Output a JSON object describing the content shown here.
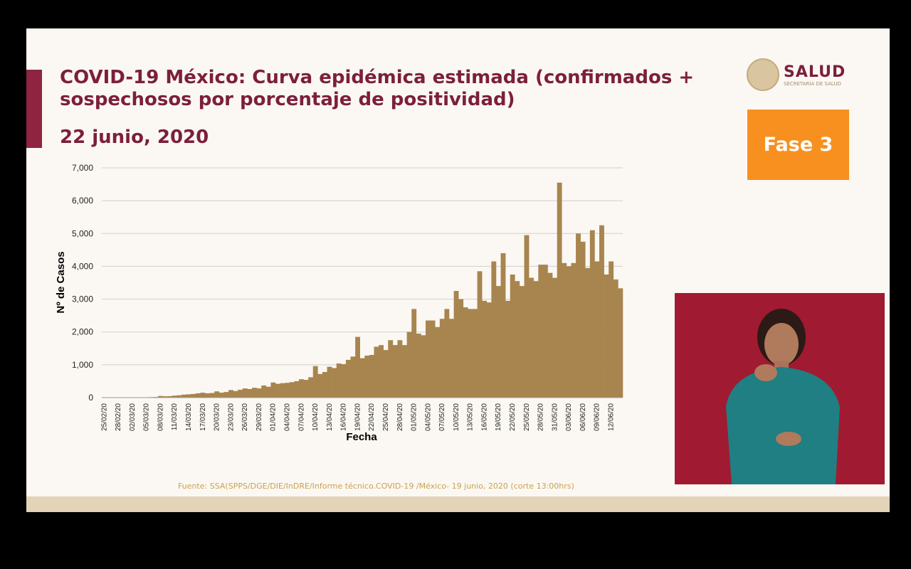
{
  "slide": {
    "title": "COVID-19 México: Curva epidémica estimada (confirmados + sospechosos por porcentaje de positividad)",
    "date": "22 junio, 2020",
    "phase": "Fase 3",
    "source": "Fuente: SSA(SPPS/DGE/DIE/InDRE/Informe técnico.COVID-19 /México- 19 junio, 2020 (corte 13:00hrs)"
  },
  "logo": {
    "name": "SALUD",
    "subtitle": "SECRETARÍA DE SALUD"
  },
  "chart_data": {
    "type": "bar",
    "y_label": "Nº de Casos",
    "x_label": "Fecha",
    "color": "#a8854f",
    "grid": true,
    "ylim": [
      0,
      7000
    ],
    "yticks": [
      0,
      {
        "value": 1000,
        "label": "1,000"
      },
      {
        "value": 2000,
        "label": "2,000"
      },
      {
        "value": 3000,
        "label": "3,000"
      },
      {
        "value": 4000,
        "label": "4,000"
      },
      {
        "value": 5000,
        "label": "5,000"
      },
      {
        "value": 6000,
        "label": "6,000"
      },
      {
        "value": 7000,
        "label": "7,000"
      }
    ],
    "categories": [
      "25/02/20",
      null,
      null,
      "28/02/20",
      null,
      null,
      "02/03/20",
      null,
      null,
      "05/03/20",
      null,
      null,
      "08/03/20",
      null,
      null,
      "11/03/20",
      null,
      null,
      "14/03/20",
      null,
      null,
      "17/03/20",
      null,
      null,
      "20/03/20",
      null,
      null,
      "23/03/20",
      null,
      null,
      "26/03/20",
      null,
      null,
      "29/03/20",
      null,
      null,
      "01/04/20",
      null,
      null,
      "04/04/20",
      null,
      null,
      "07/04/20",
      null,
      null,
      "10/04/20",
      null,
      null,
      "13/04/20",
      null,
      null,
      "16/04/20",
      null,
      null,
      "19/04/20",
      null,
      null,
      "22/04/20",
      null,
      null,
      "25/04/20",
      null,
      null,
      "28/04/20",
      null,
      null,
      "01/05/20",
      null,
      null,
      "04/05/20",
      null,
      null,
      "07/05/20",
      null,
      null,
      "10/05/20",
      null,
      null,
      "13/05/20",
      null,
      null,
      "16/05/20",
      null,
      null,
      "19/05/20",
      null,
      null,
      "22/05/20",
      null,
      null,
      "25/05/20",
      null,
      null,
      "28/05/20",
      null,
      null,
      "31/05/20",
      null,
      null,
      "03/06/20",
      null,
      null,
      "06/06/20",
      null,
      null,
      "09/06/20",
      null,
      null,
      "12/06/20",
      null,
      null
    ],
    "values": [
      0,
      0,
      0,
      2,
      3,
      4,
      5,
      5,
      8,
      10,
      15,
      20,
      50,
      40,
      45,
      60,
      70,
      90,
      100,
      110,
      130,
      150,
      130,
      140,
      190,
      150,
      170,
      230,
      200,
      240,
      280,
      260,
      300,
      280,
      370,
      330,
      460,
      420,
      440,
      450,
      470,
      500,
      560,
      540,
      620,
      960,
      720,
      780,
      940,
      900,
      1040,
      1020,
      1150,
      1250,
      1850,
      1200,
      1280,
      1300,
      1550,
      1600,
      1450,
      1750,
      1600,
      1750,
      1600,
      2000,
      2700,
      1950,
      1900,
      2350,
      2350,
      2150,
      2400,
      2700,
      2400,
      3250,
      3000,
      2750,
      2700,
      2700,
      3850,
      2950,
      2900,
      4150,
      3400,
      4400,
      2950,
      3750,
      3550,
      3400,
      4950,
      3650,
      3550,
      4050,
      4050,
      3800,
      3650,
      6550,
      4100,
      4000,
      4100,
      5000,
      4750,
      3950,
      5100,
      4150,
      5250,
      3750,
      4150,
      3600,
      3330
    ]
  }
}
